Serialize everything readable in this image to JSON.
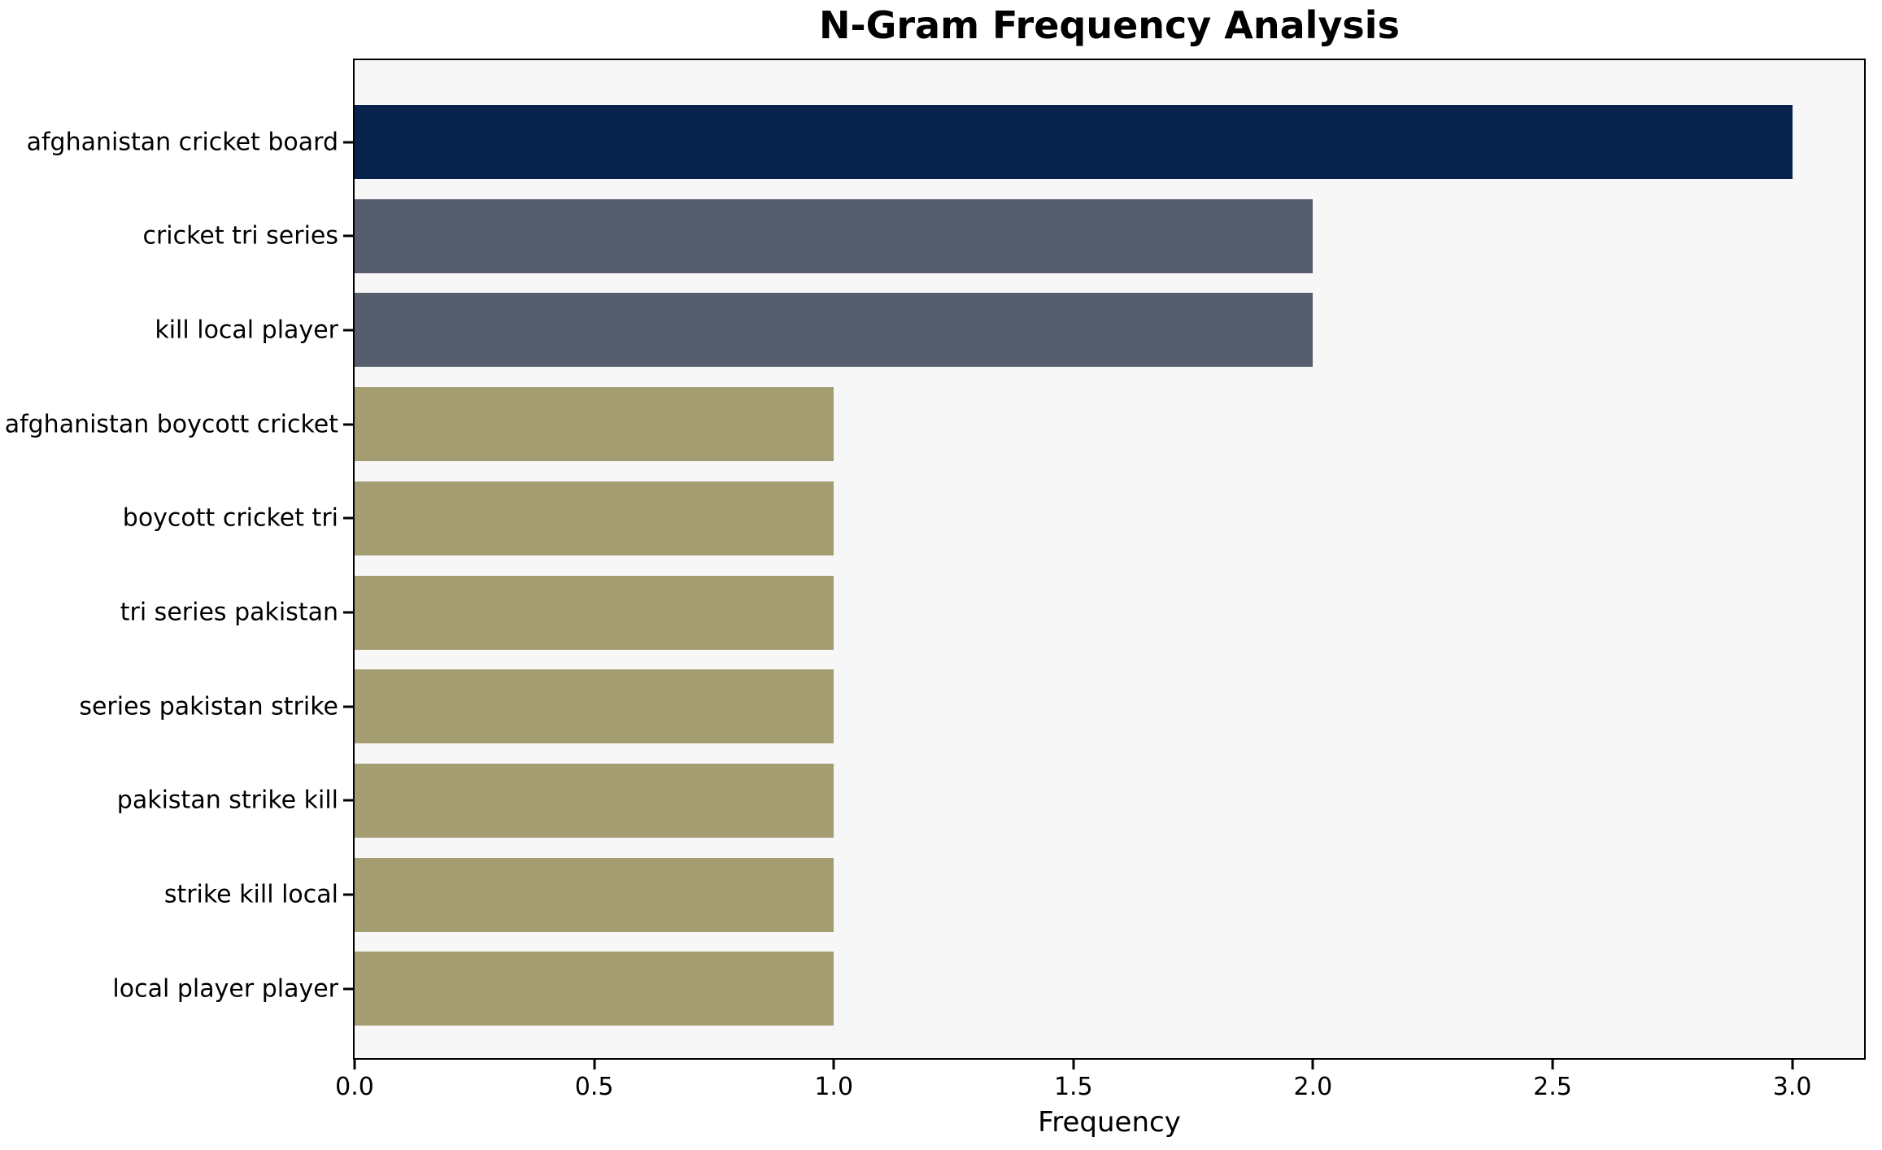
{
  "chart_data": {
    "type": "bar",
    "orientation": "horizontal",
    "title": "N-Gram Frequency Analysis",
    "xlabel": "Frequency",
    "ylabel": "",
    "categories": [
      "afghanistan cricket board",
      "cricket tri series",
      "kill local player",
      "afghanistan boycott cricket",
      "boycott cricket tri",
      "tri series pakistan",
      "series pakistan strike",
      "pakistan strike kill",
      "strike kill local",
      "local player player"
    ],
    "values": [
      3,
      2,
      2,
      1,
      1,
      1,
      1,
      1,
      1,
      1
    ],
    "bar_colors": [
      "#07224d",
      "#565d6d",
      "#565d6d",
      "#a49d72",
      "#a49d72",
      "#a49d72",
      "#a49d72",
      "#a49d72",
      "#a49d72",
      "#a49d72"
    ],
    "xlim": [
      0,
      3.15
    ],
    "xtick_labels": [
      "0.0",
      "0.5",
      "1.0",
      "1.5",
      "2.0",
      "2.5",
      "3.0"
    ],
    "grid": false,
    "legend": "none",
    "plot_background": "#f7f7f7",
    "figure_background": "#ffffff",
    "spine_color": "#000000"
  }
}
